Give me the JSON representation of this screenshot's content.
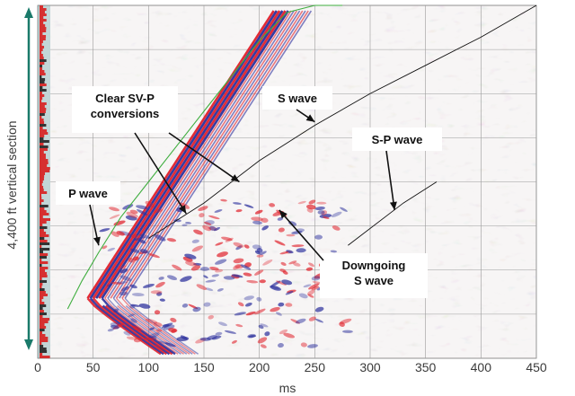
{
  "chart_data": {
    "type": "heatmap",
    "title": "",
    "xlabel": "ms",
    "ylabel": "4,400 ft vertical section",
    "xlim": [
      0,
      450
    ],
    "x_ticks": [
      0,
      50,
      100,
      150,
      200,
      250,
      300,
      350,
      400,
      450
    ],
    "grid": true,
    "palette": {
      "positive": "#e0202a",
      "negative": "#2b2f9c",
      "background": "#f7f5f5",
      "log_track": "#d81e1e"
    },
    "annotations": [
      {
        "text": "Clear SV-P\nconversions",
        "arrows": [
          {
            "x": 134,
            "depth": 0.59
          },
          {
            "x": 182,
            "depth": 0.5
          }
        ]
      },
      {
        "text": "S wave",
        "arrows": [
          {
            "x": 250,
            "depth": 0.33
          }
        ]
      },
      {
        "text": "S-P wave",
        "arrows": [
          {
            "x": 322,
            "depth": 0.58
          }
        ]
      },
      {
        "text": "P wave",
        "arrows": [
          {
            "x": 55,
            "depth": 0.68
          }
        ]
      },
      {
        "text": "Downgoing\nS wave",
        "arrows": [
          {
            "x": 218,
            "depth": 0.58
          }
        ]
      }
    ],
    "series": [
      {
        "x": [
          27,
          40,
          55,
          75,
          100,
          125,
          150,
          175,
          200,
          225,
          250,
          275
        ],
        "depth": [
          0.86,
          0.78,
          0.7,
          0.6,
          0.5,
          0.4,
          0.3,
          0.2,
          0.1,
          0.02,
          -0.06,
          -0.14
        ]
      },
      {
        "x": [
          100,
          150,
          200,
          250,
          300,
          350,
          400,
          450
        ],
        "depth": [
          0.66,
          0.56,
          0.44,
          0.34,
          0.25,
          0.17,
          0.09,
          0.0
        ]
      },
      {
        "x": [
          280,
          330,
          360
        ],
        "depth": [
          0.68,
          0.56,
          0.5
        ]
      }
    ]
  }
}
